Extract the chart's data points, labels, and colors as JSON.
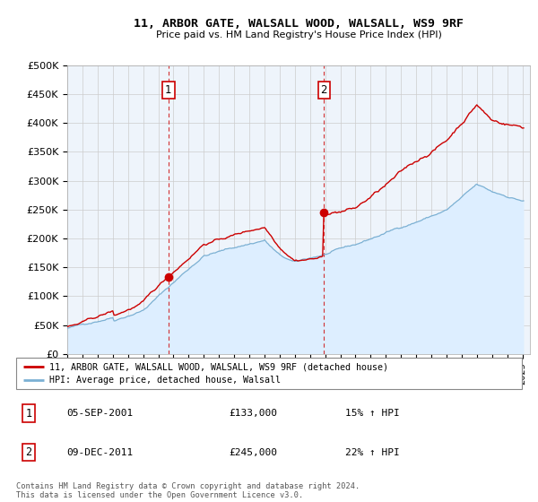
{
  "title_line1": "11, ARBOR GATE, WALSALL WOOD, WALSALL, WS9 9RF",
  "title_line2": "Price paid vs. HM Land Registry's House Price Index (HPI)",
  "legend_property": "11, ARBOR GATE, WALSALL WOOD, WALSALL, WS9 9RF (detached house)",
  "legend_hpi": "HPI: Average price, detached house, Walsall",
  "annotation1_label": "1",
  "annotation1_date": "05-SEP-2001",
  "annotation1_price": "£133,000",
  "annotation1_hpi": "15% ↑ HPI",
  "annotation2_label": "2",
  "annotation2_date": "09-DEC-2011",
  "annotation2_price": "£245,000",
  "annotation2_hpi": "22% ↑ HPI",
  "footer": "Contains HM Land Registry data © Crown copyright and database right 2024.\nThis data is licensed under the Open Government Licence v3.0.",
  "property_color": "#cc0000",
  "hpi_color": "#7ab0d4",
  "hpi_fill_color": "#ddeeff",
  "background_color": "#eef4fb",
  "ylim": [
    0,
    500000
  ],
  "yticks": [
    0,
    50000,
    100000,
    150000,
    200000,
    250000,
    300000,
    350000,
    400000,
    450000,
    500000
  ],
  "xlim_start": 1995.0,
  "xlim_end": 2025.5,
  "transaction1_year": 2001.67,
  "transaction1_price": 133000,
  "transaction2_year": 2011.92,
  "transaction2_price": 245000
}
